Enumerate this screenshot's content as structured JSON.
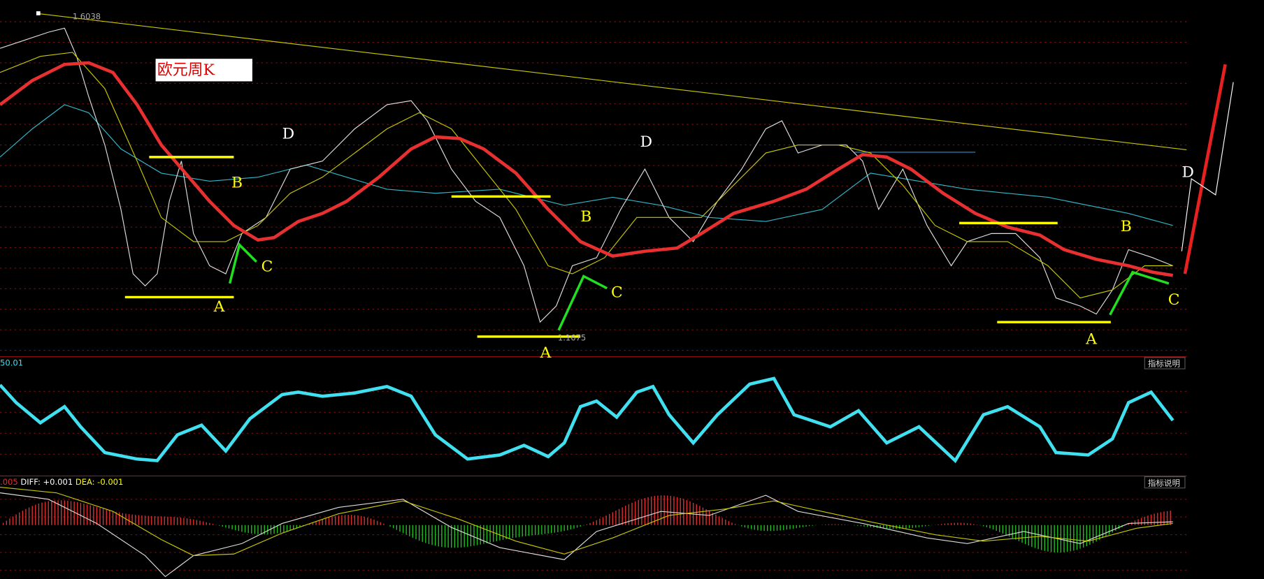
{
  "header": {
    "title": "欧元周K",
    "high": "1.6038",
    "low": "1.1675"
  },
  "pattern_labels": [
    {
      "text": "D",
      "color": "#ffffff"
    },
    {
      "text": "B",
      "color": "#ffff00"
    },
    {
      "text": "C",
      "color": "#ffff00"
    },
    {
      "text": "A",
      "color": "#ffff00"
    },
    {
      "text": "D",
      "color": "#ffffff"
    },
    {
      "text": "B",
      "color": "#ffff00"
    },
    {
      "text": "C",
      "color": "#ffff00"
    },
    {
      "text": "A",
      "color": "#ffff00"
    },
    {
      "text": "B",
      "color": "#ffff00"
    },
    {
      "text": "C",
      "color": "#ffff00"
    },
    {
      "text": "A",
      "color": "#ffff00"
    },
    {
      "text": "D",
      "color": "#ffffff"
    }
  ],
  "indicator": {
    "value": "50.01",
    "button": "指标说明"
  },
  "macd": {
    "prefix": ".005",
    "diff": "DIFF: +0.001",
    "dea": "DEA: -0.001",
    "button": "指标说明"
  }
}
